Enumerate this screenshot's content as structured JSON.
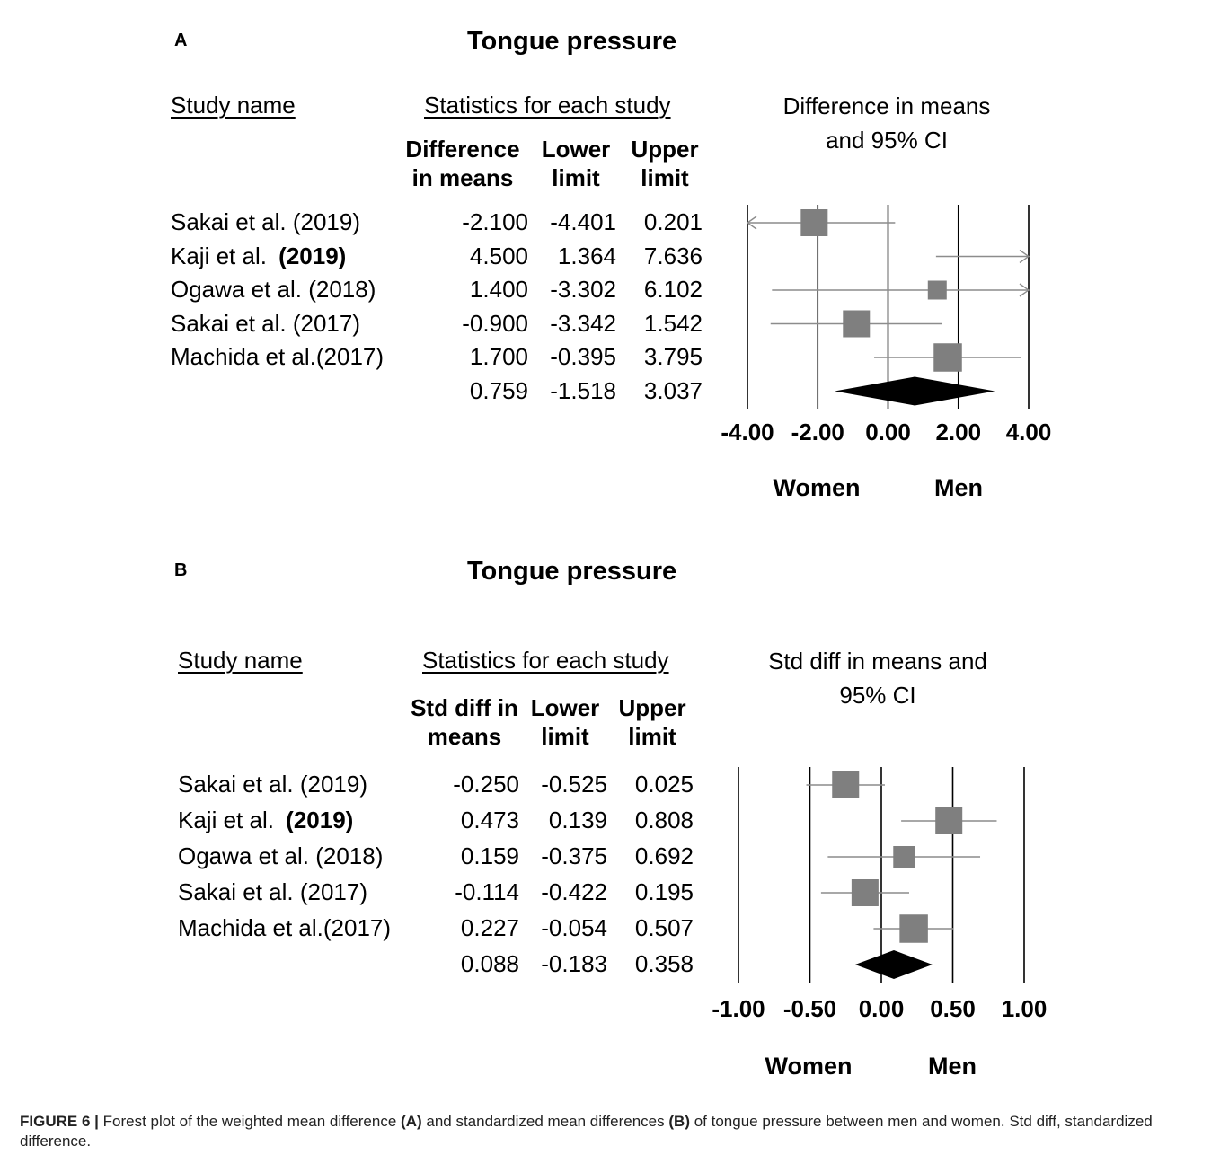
{
  "chart_data": [
    {
      "type": "forest",
      "panel_label": "A",
      "title": "Tongue pressure",
      "study_header": "Study name",
      "stats_header": "Statistics for each study",
      "column_headers": [
        "Difference in means",
        "Lower limit",
        "Upper limit"
      ],
      "plot_label": "Difference in means and 95% CI",
      "xlim": [
        -4,
        4
      ],
      "xticks": [
        "-4.00",
        "-2.00",
        "0.00",
        "2.00",
        "4.00"
      ],
      "xlabel_left": "Women",
      "xlabel_right": "Men",
      "studies": [
        {
          "name": "Sakai et al. (2019)",
          "bold_year": "",
          "effect": "-2.100",
          "lower": "-4.401",
          "upper": "0.201",
          "e": -2.1,
          "lo": -4.401,
          "hi": 0.201,
          "weight": 1.0
        },
        {
          "name": "Kaji et al.",
          "bold_year": "(2019)",
          "effect": "4.500",
          "lower": "1.364",
          "upper": "7.636",
          "e": 4.5,
          "lo": 1.364,
          "hi": 7.636,
          "weight": 0.5
        },
        {
          "name": "Ogawa et al. (2018)",
          "bold_year": "",
          "effect": "1.400",
          "lower": "-3.302",
          "upper": "6.102",
          "e": 1.4,
          "lo": -3.302,
          "hi": 6.102,
          "weight": 0.7
        },
        {
          "name": "Sakai et al. (2017)",
          "bold_year": "",
          "effect": "-0.900",
          "lower": "-3.342",
          "upper": "1.542",
          "e": -0.9,
          "lo": -3.342,
          "hi": 1.542,
          "weight": 1.0
        },
        {
          "name": "Machida et al.(2017)",
          "bold_year": "",
          "effect": "1.700",
          "lower": "-0.395",
          "upper": "3.795",
          "e": 1.7,
          "lo": -0.395,
          "hi": 3.795,
          "weight": 1.05
        }
      ],
      "summary": {
        "effect": "0.759",
        "lower": "-1.518",
        "upper": "3.037",
        "e": 0.759,
        "lo": -1.518,
        "hi": 3.037
      }
    },
    {
      "type": "forest",
      "panel_label": "B",
      "title": "Tongue pressure",
      "study_header": "Study name",
      "stats_header": "Statistics for each study",
      "column_headers": [
        "Std diff in means",
        "Lower limit",
        "Upper limit"
      ],
      "plot_label": "Std diff in means and 95% CI",
      "xlim": [
        -1,
        1
      ],
      "xticks": [
        "-1.00",
        "-0.50",
        "0.00",
        "0.50",
        "1.00"
      ],
      "xlabel_left": "Women",
      "xlabel_right": "Men",
      "studies": [
        {
          "name": "Sakai et al. (2019)",
          "bold_year": "",
          "effect": "-0.250",
          "lower": "-0.525",
          "upper": "0.025",
          "e": -0.25,
          "lo": -0.525,
          "hi": 0.025,
          "weight": 1.0
        },
        {
          "name": "Kaji et al.",
          "bold_year": "(2019)",
          "effect": "0.473",
          "lower": "0.139",
          "upper": "0.808",
          "e": 0.473,
          "lo": 0.139,
          "hi": 0.808,
          "weight": 1.0
        },
        {
          "name": "Ogawa et al. (2018)",
          "bold_year": "",
          "effect": "0.159",
          "lower": "-0.375",
          "upper": "0.692",
          "e": 0.159,
          "lo": -0.375,
          "hi": 0.692,
          "weight": 0.8
        },
        {
          "name": "Sakai et al. (2017)",
          "bold_year": "",
          "effect": "-0.114",
          "lower": "-0.422",
          "upper": "0.195",
          "e": -0.114,
          "lo": -0.422,
          "hi": 0.195,
          "weight": 1.0
        },
        {
          "name": "Machida et al.(2017)",
          "bold_year": "",
          "effect": "0.227",
          "lower": "-0.054",
          "upper": "0.507",
          "e": 0.227,
          "lo": -0.054,
          "hi": 0.507,
          "weight": 1.05
        }
      ],
      "summary": {
        "effect": "0.088",
        "lower": "-0.183",
        "upper": "0.358",
        "e": 0.088,
        "lo": -0.183,
        "hi": 0.358
      }
    }
  ],
  "caption": {
    "figure_label": "FIGURE 6 |",
    "text_1": "Forest plot of the weighted mean difference",
    "ref_a": "(A)",
    "text_2": "and standardized mean differences",
    "ref_b": "(B)",
    "text_3": "of tongue pressure between men and women. Std diff, standardized difference."
  },
  "colors": {
    "marker": "#7f7f7f",
    "ci_line": "#8c8c8c",
    "summary": "#000000",
    "axis": "#000000"
  }
}
